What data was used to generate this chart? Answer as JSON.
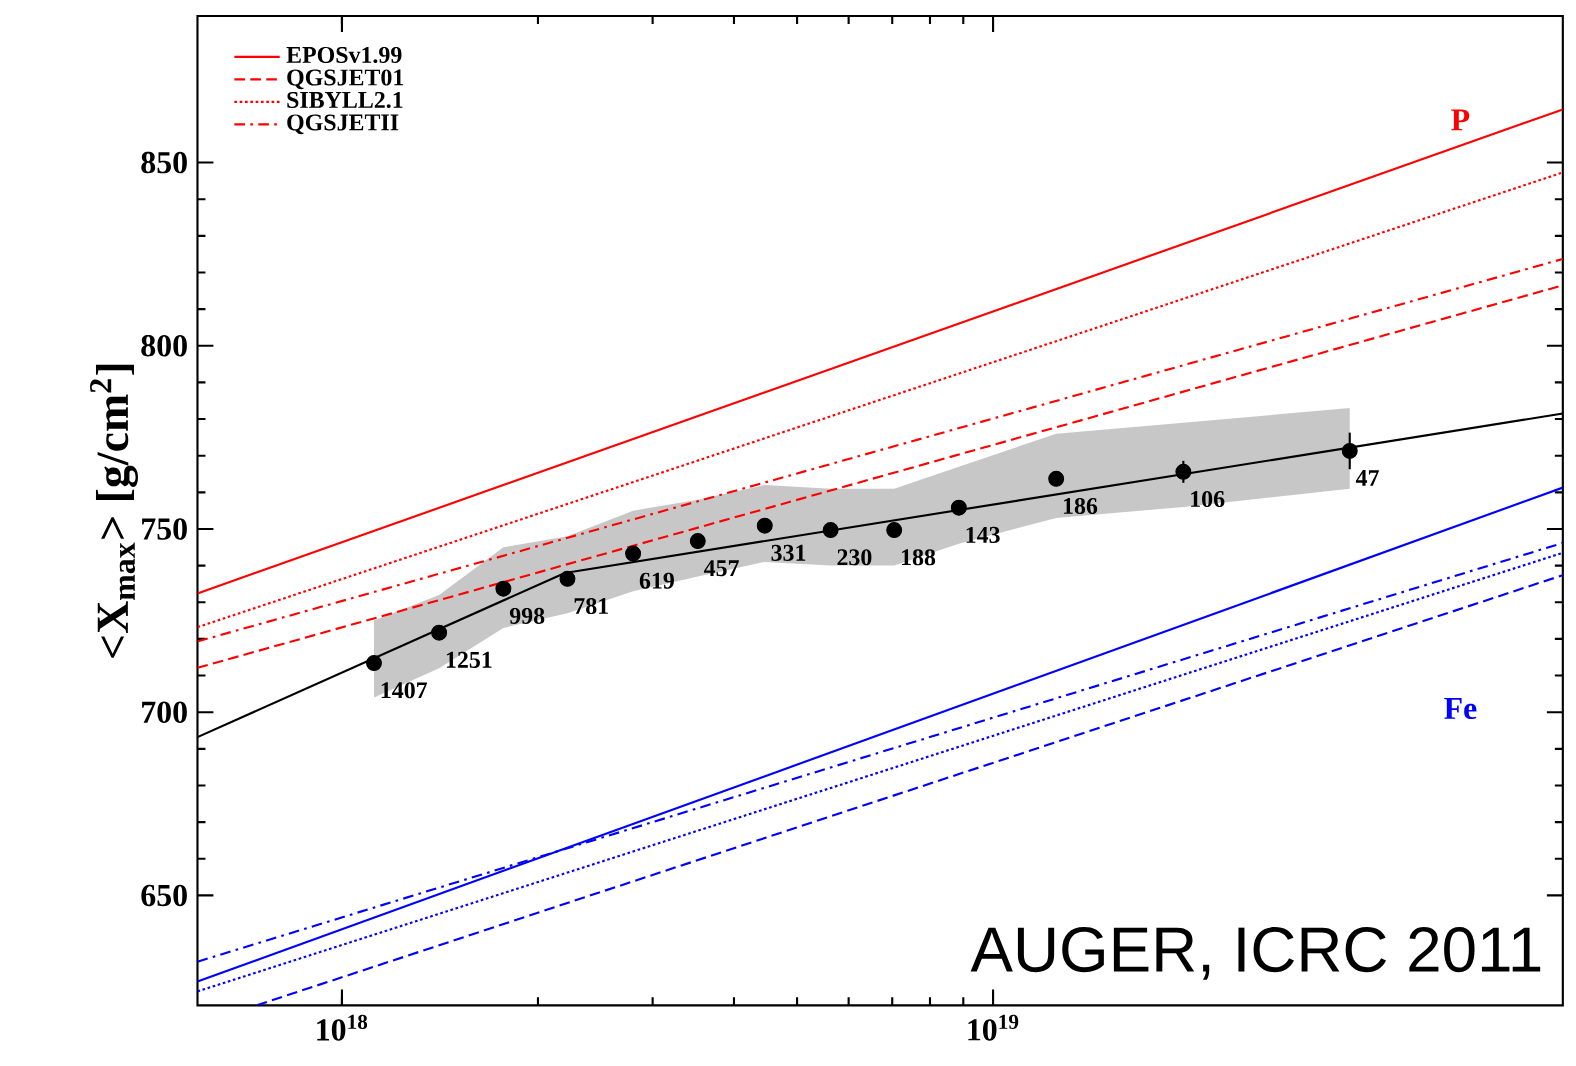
{
  "chart_data": {
    "type": "line",
    "ylabel": "<X$_{max}$> [g/cm$^{2}$]",
    "log": "x",
    "legend": "top left",
    "xlim": [
      6e+17,
      7.5e+19
    ],
    "ylim": [
      620,
      890
    ],
    "xticks": [
      {
        "value": 1e+18,
        "label": "10$^{18}$"
      },
      {
        "value": 1e+19,
        "label": "10$^{19}$"
      }
    ],
    "yticks": [
      650,
      700,
      750,
      800,
      850
    ],
    "series": [
      {
        "name": "EPOSv1.99",
        "color": "#ff0000",
        "line_style": "solid",
        "x": [
          6e+17,
          7.5e+19
        ],
        "values": [
          732.4,
          864.5
        ]
      },
      {
        "name": "QGSJET01",
        "color": "#ff0000",
        "line_style": "dashed",
        "x": [
          6e+17,
          7.5e+19
        ],
        "values": [
          712.1,
          816.5
        ]
      },
      {
        "name": "SIBYLL2.1",
        "color": "#ff0000",
        "line_style": "dotted",
        "x": [
          6e+17,
          7.5e+19
        ],
        "values": [
          723.2,
          847.3
        ]
      },
      {
        "name": "QGSJETII",
        "color": "#ff0000",
        "line_style": "dashdot",
        "x": [
          6e+17,
          7.5e+19
        ],
        "values": [
          719.3,
          823.7
        ]
      },
      {
        "color": "#0000ff",
        "line_style": "solid",
        "x": [
          6e+17,
          7.5e+19
        ],
        "values": [
          626.5,
          761.3
        ]
      },
      {
        "color": "#0000ff",
        "line_style": "dashed",
        "x": [
          7.4e+17,
          7.5e+19
        ],
        "values": [
          620,
          737.4
        ]
      },
      {
        "color": "#0000ff",
        "line_style": "dotted",
        "x": [
          6e+17,
          7.5e+19
        ],
        "values": [
          623.8,
          743.5
        ]
      },
      {
        "color": "#0000ff",
        "line_style": "dashdot",
        "x": [
          6e+17,
          7.5e+19
        ],
        "values": [
          631.9,
          746.2
        ]
      },
      {
        "color": "#000000",
        "line_style": "solid",
        "x": [
          6e+17,
          2.2e+18,
          7.5e+19
        ],
        "values": [
          693.2,
          738,
          781.5
        ]
      },
      {
        "type": "scatter",
        "marker": "circle",
        "color": "#000000",
        "x": [
          1.12e+18,
          1.41e+18,
          1.77e+18,
          2.22e+18,
          2.8e+18,
          3.52e+18,
          4.46e+18,
          5.63e+18,
          7.05e+18,
          8.86e+18,
          1.25e+19,
          1.96e+19,
          3.53e+19
        ],
        "values": [
          713.4,
          721.7,
          733.7,
          736.4,
          743.3,
          746.7,
          750.9,
          749.7,
          749.7,
          755.8,
          763.7,
          765.6,
          771.3
        ],
        "errors": [
          2,
          2,
          2,
          2,
          2,
          2,
          2,
          2,
          2,
          2,
          2,
          3,
          5
        ],
        "lower": [
          704,
          712,
          723,
          727,
          733,
          737,
          741,
          740,
          740,
          746,
          753,
          756,
          761
        ],
        "upper": [
          725,
          732,
          745,
          748,
          755,
          758,
          762,
          761,
          761,
          767,
          776,
          779,
          783
        ]
      }
    ],
    "annotations": [
      {
        "text": "1407",
        "x": 1.12e+18,
        "y": 713.4
      },
      {
        "text": "1251",
        "x": 1.41e+18,
        "y": 721.7
      },
      {
        "text": "998",
        "x": 1.77e+18,
        "y": 733.7
      },
      {
        "text": "781",
        "x": 2.22e+18,
        "y": 736.4
      },
      {
        "text": "619",
        "x": 2.8e+18,
        "y": 743.3
      },
      {
        "text": "457",
        "x": 3.52e+18,
        "y": 746.7
      },
      {
        "text": "331",
        "x": 4.46e+18,
        "y": 750.9
      },
      {
        "text": "230",
        "x": 5.63e+18,
        "y": 749.7
      },
      {
        "text": "188",
        "x": 7.05e+18,
        "y": 749.7
      },
      {
        "text": "143",
        "x": 8.86e+18,
        "y": 755.8
      },
      {
        "text": "186",
        "x": 1.25e+19,
        "y": 763.7
      },
      {
        "text": "106",
        "x": 1.96e+19,
        "y": 765.6
      },
      {
        "text": "47",
        "x": 3.53e+19,
        "y": 771.3
      },
      "P",
      "Fe",
      "AUGER, ICRC 2011"
    ]
  }
}
